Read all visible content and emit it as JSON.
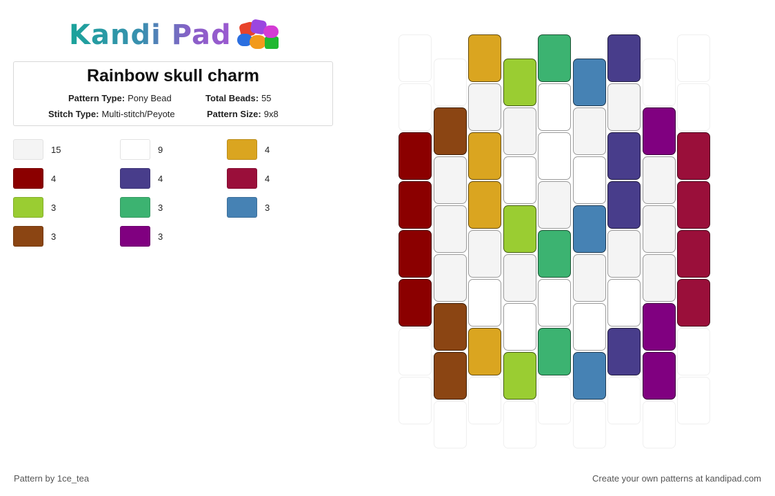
{
  "logo": {
    "text": "Kandi Pad",
    "bead_colors": [
      "#e8432b",
      "#9b46e0",
      "#2b6fe0",
      "#f29a1c",
      "#20b830",
      "#d43bd4"
    ]
  },
  "pattern": {
    "title": "Rainbow skull charm",
    "type_label": "Pattern Type:",
    "type_value": "Pony Bead",
    "total_label": "Total Beads:",
    "total_value": "55",
    "stitch_label": "Stitch Type:",
    "stitch_value": "Multi-stitch/Peyote",
    "size_label": "Pattern Size:",
    "size_value": "9x8"
  },
  "legend": [
    {
      "color": "#f4f4f4",
      "count": "15"
    },
    {
      "color": "#ffffff",
      "count": "9"
    },
    {
      "color": "#daa520",
      "count": "4"
    },
    {
      "color": "#8b0000",
      "count": "4"
    },
    {
      "color": "#483d8b",
      "count": "4"
    },
    {
      "color": "#9a0f3a",
      "count": "4"
    },
    {
      "color": "#9acd32",
      "count": "3"
    },
    {
      "color": "#3cb371",
      "count": "3"
    },
    {
      "color": "#4682b4",
      "count": "3"
    },
    {
      "color": "#8b4513",
      "count": "3"
    },
    {
      "color": "#800080",
      "count": "3"
    }
  ],
  "beads": {
    "palette": {
      "R": "#8b0000",
      "B": "#8b4513",
      "Y": "#daa520",
      "G": "#9acd32",
      "E": "#3cb371",
      "L": "#4682b4",
      "I": "#483d8b",
      "P": "#800080",
      "M": "#9a0f3a",
      "S": "#f4f4f4",
      "W": "#ffffff",
      "_": "empty"
    },
    "columns": [
      [
        "_",
        "_",
        "R",
        "R",
        "R",
        "R",
        "_",
        "_"
      ],
      [
        "_",
        "B",
        "S",
        "S",
        "S",
        "B",
        "B",
        "_"
      ],
      [
        "Y",
        "S",
        "Y",
        "Y",
        "S",
        "W",
        "Y",
        "_"
      ],
      [
        "G",
        "S",
        "W",
        "G",
        "S",
        "W",
        "G",
        "_"
      ],
      [
        "E",
        "W",
        "W",
        "S",
        "E",
        "W",
        "E",
        "_"
      ],
      [
        "L",
        "S",
        "W",
        "L",
        "S",
        "W",
        "L",
        "_"
      ],
      [
        "I",
        "S",
        "I",
        "I",
        "S",
        "W",
        "I",
        "_"
      ],
      [
        "_",
        "P",
        "S",
        "S",
        "S",
        "P",
        "P",
        "_"
      ],
      [
        "_",
        "_",
        "M",
        "M",
        "M",
        "M",
        "_",
        "_"
      ]
    ]
  },
  "footer": {
    "left": "Pattern by 1ce_tea",
    "right": "Create your own patterns at kandipad.com"
  }
}
